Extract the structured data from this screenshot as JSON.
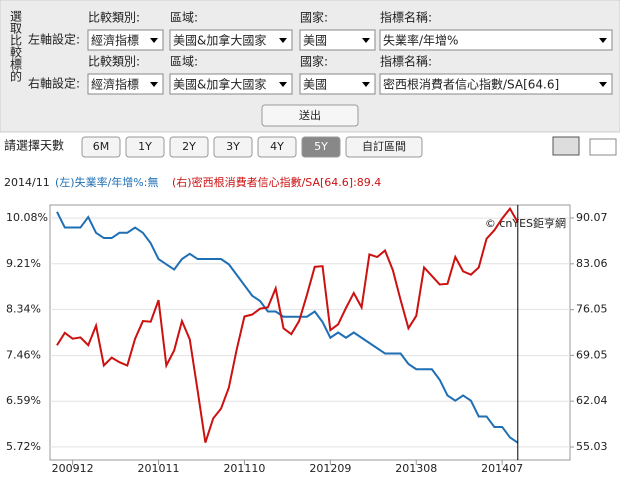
{
  "form": {
    "side_label": "選取比較標的",
    "rows": [
      {
        "label": "左軸設定:",
        "fields": [
          {
            "label": "比較類別:",
            "value": "經濟指標"
          },
          {
            "label": "區域:",
            "value": "美國&加拿大國家"
          },
          {
            "label": "國家:",
            "value": "美國"
          },
          {
            "label": "指標名稱:",
            "value": "失業率/年增%"
          }
        ]
      },
      {
        "label": "右軸設定:",
        "fields": [
          {
            "label": "比較類別:",
            "value": "經濟指標"
          },
          {
            "label": "區域:",
            "value": "美國&加拿大國家"
          },
          {
            "label": "國家:",
            "value": "美國"
          },
          {
            "label": "指標名稱:",
            "value": "密西根消費者信心指數/SA[64.6]"
          }
        ]
      }
    ],
    "submit": "送出"
  },
  "range": {
    "label": "請選擇天數",
    "buttons": [
      "6M",
      "1Y",
      "2Y",
      "3Y",
      "4Y",
      "5Y",
      "自訂區間"
    ],
    "active": 5
  },
  "chart_data": {
    "type": "line",
    "date": "2014/11",
    "left_legend": "(左)失業率/年增%:無",
    "right_legend": "(右)密西根消費者信心指數/SA[64.6]:89.4",
    "credit": "© cnYES鉅亨網",
    "categories": [
      null,
      null,
      "200912",
      null,
      null,
      null,
      null,
      null,
      null,
      null,
      null,
      null,
      null,
      "201011",
      null,
      null,
      null,
      null,
      null,
      null,
      null,
      null,
      null,
      null,
      "201110",
      null,
      null,
      null,
      null,
      null,
      null,
      null,
      null,
      null,
      null,
      "201209",
      null,
      null,
      null,
      null,
      null,
      null,
      null,
      null,
      null,
      null,
      "201308",
      null,
      null,
      null,
      null,
      null,
      null,
      null,
      null,
      null,
      null,
      "201407",
      null,
      null
    ],
    "series": [
      {
        "name": "失業率/年增%",
        "color": "#1f6fb5",
        "values": [
          10.2,
          9.9,
          9.9,
          9.9,
          10.1,
          9.8,
          9.7,
          9.7,
          9.8,
          9.8,
          9.9,
          9.8,
          9.6,
          9.3,
          9.2,
          9.1,
          9.3,
          9.4,
          9.3,
          9.3,
          9.3,
          9.3,
          9.2,
          9.0,
          8.8,
          8.6,
          8.5,
          8.3,
          8.3,
          8.2,
          8.2,
          8.2,
          8.2,
          8.3,
          8.1,
          7.8,
          7.9,
          7.8,
          7.9,
          7.8,
          7.7,
          7.6,
          7.5,
          7.5,
          7.5,
          7.3,
          7.2,
          7.2,
          7.2,
          7.0,
          6.7,
          6.6,
          6.7,
          6.6,
          6.3,
          6.3,
          6.1,
          6.1,
          5.9,
          5.8
        ]
      },
      {
        "name": "密西根消費者信心指數/SA[64.6]",
        "color": "#cc1111",
        "axis": "y2",
        "values": [
          70.6,
          72.5,
          71.6,
          71.8,
          70.6,
          73.6,
          67.5,
          68.7,
          68.0,
          67.5,
          71.6,
          74.3,
          74.2,
          77.5,
          67.5,
          69.8,
          74.3,
          71.5,
          63.7,
          55.7,
          59.4,
          60.9,
          64.1,
          69.9,
          75.0,
          75.3,
          76.2,
          76.4,
          79.3,
          73.2,
          72.3,
          74.3,
          78.3,
          82.6,
          82.7,
          72.9,
          73.8,
          76.3,
          78.6,
          76.4,
          84.5,
          84.1,
          85.1,
          82.1,
          77.5,
          73.2,
          75.1,
          82.5,
          81.2,
          79.9,
          80.0,
          84.1,
          81.9,
          81.4,
          82.5,
          86.9,
          88.2,
          90.0,
          91.5,
          89.4
        ]
      }
    ],
    "yticks": [
      {
        "value": 10.08,
        "label": "10.08%"
      },
      {
        "value": 9.21,
        "label": "9.21%"
      },
      {
        "value": 8.34,
        "label": "8.34%"
      },
      {
        "value": 7.46,
        "label": "7.46%"
      },
      {
        "value": 6.59,
        "label": "6.59%"
      },
      {
        "value": 5.72,
        "label": "5.72%"
      }
    ],
    "ylim": [
      5.47,
      10.33
    ],
    "y2ticks": [
      90.07,
      83.06,
      76.05,
      69.05,
      62.04,
      55.03
    ],
    "y2lim": [
      53.04,
      92.06
    ],
    "grid": true
  }
}
